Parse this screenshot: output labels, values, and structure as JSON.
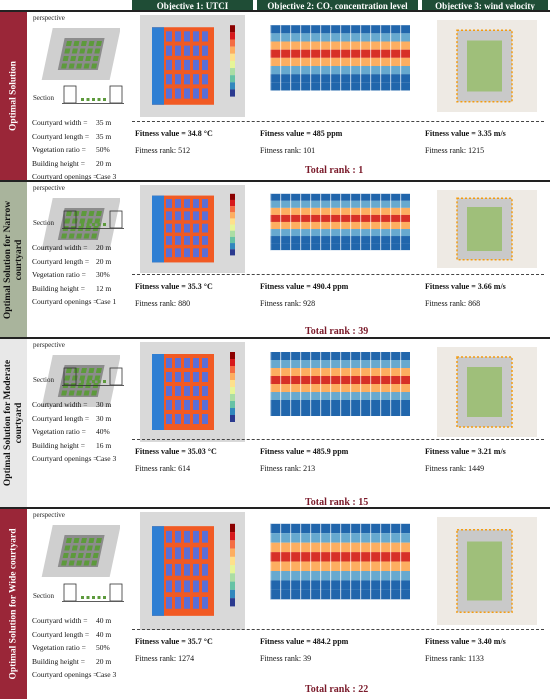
{
  "header": {
    "objectives": [
      "Objective 1: UTCI",
      "Objective 2: CO₂ concentration level",
      "Objective 3: wind velocity"
    ]
  },
  "sections": [
    {
      "label": "Optimal Solution",
      "perspective": "perspective",
      "section": "Section",
      "params": [
        {
          "name": "Courtyard width =",
          "value": "35 m"
        },
        {
          "name": "Courtyard length =",
          "value": "35 m"
        },
        {
          "name": "Vegetation ratio =",
          "value": "50%"
        },
        {
          "name": "Building height =",
          "value": "20 m"
        },
        {
          "name": "Courtyard openings =",
          "value": "Case 3"
        }
      ],
      "fitness": [
        {
          "label": "Fitness value =",
          "value": "34.8 °C"
        },
        {
          "label": "Fitness value =",
          "value": "485 ppm"
        },
        {
          "label": "Fitness value =",
          "value": "3.35 m/s"
        }
      ],
      "ranks": [
        {
          "label": "Fitness rank:",
          "value": "512"
        },
        {
          "label": "Fitness rank:",
          "value": "101"
        },
        {
          "label": "Fitness rank:",
          "value": "1215"
        }
      ],
      "total": "Total rank : 1"
    },
    {
      "label": "Optimal Solution for Narrow courtyard",
      "perspective": "perspective",
      "section": "Section",
      "params": [
        {
          "name": "Courtyard width =",
          "value": "20 m"
        },
        {
          "name": "Courtyard length =",
          "value": "20 m"
        },
        {
          "name": "Vegetation ratio =",
          "value": "30%"
        },
        {
          "name": "Building height =",
          "value": "12 m"
        },
        {
          "name": "Courtyard openings =",
          "value": "Case 1"
        }
      ],
      "fitness": [
        {
          "label": "Fitness value =",
          "value": "35.3 °C"
        },
        {
          "label": "Fitness value =",
          "value": "490.4 ppm"
        },
        {
          "label": "Fitness value =",
          "value": "3.66 m/s"
        }
      ],
      "ranks": [
        {
          "label": "Fitness rank:",
          "value": "880"
        },
        {
          "label": "Fitness rank:",
          "value": "928"
        },
        {
          "label": "Fitness rank:",
          "value": "868"
        }
      ],
      "total": "Total rank : 39"
    },
    {
      "label": "Optimal Solution for Moderate courtyard",
      "perspective": "perspective",
      "section": "Section",
      "params": [
        {
          "name": "Courtyard width =",
          "value": "30 m"
        },
        {
          "name": "Courtyard length =",
          "value": "30 m"
        },
        {
          "name": "Vegetation ratio =",
          "value": "40%"
        },
        {
          "name": "Building height =",
          "value": "16 m"
        },
        {
          "name": "Courtyard openings =",
          "value": "Case 3"
        }
      ],
      "fitness": [
        {
          "label": "Fitness value =",
          "value": "35.03 °C"
        },
        {
          "label": "Fitness value =",
          "value": "485.9 ppm"
        },
        {
          "label": "Fitness value =",
          "value": "3.21 m/s"
        }
      ],
      "ranks": [
        {
          "label": "Fitness rank:",
          "value": "614"
        },
        {
          "label": "Fitness rank:",
          "value": "213"
        },
        {
          "label": "Fitness rank:",
          "value": "1449"
        }
      ],
      "total": "Total rank : 15"
    },
    {
      "label": "Optimal Solution for Wide courtyard",
      "perspective": "perspective",
      "section": "Section",
      "params": [
        {
          "name": "Courtyard width =",
          "value": "40 m"
        },
        {
          "name": "Courtyard length =",
          "value": "40 m"
        },
        {
          "name": "Vegetation ratio =",
          "value": "50%"
        },
        {
          "name": "Building height =",
          "value": "20 m"
        },
        {
          "name": "Courtyard openings =",
          "value": "Case 3"
        }
      ],
      "fitness": [
        {
          "label": "Fitness value =",
          "value": "35.7 °C"
        },
        {
          "label": "Fitness value =",
          "value": "484.2 ppm"
        },
        {
          "label": "Fitness value =",
          "value": "3.40 m/s"
        }
      ],
      "ranks": [
        {
          "label": "Fitness rank:",
          "value": "1274"
        },
        {
          "label": "Fitness rank:",
          "value": "39"
        },
        {
          "label": "Fitness rank:",
          "value": "1133"
        }
      ],
      "total": "Total rank : 22"
    }
  ]
}
